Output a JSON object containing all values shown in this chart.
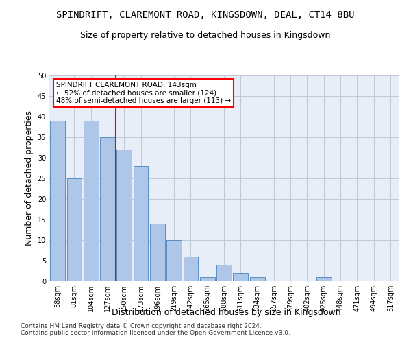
{
  "title": "SPINDRIFT, CLAREMONT ROAD, KINGSDOWN, DEAL, CT14 8BU",
  "subtitle": "Size of property relative to detached houses in Kingsdown",
  "xlabel": "Distribution of detached houses by size in Kingsdown",
  "ylabel": "Number of detached properties",
  "categories": [
    "58sqm",
    "81sqm",
    "104sqm",
    "127sqm",
    "150sqm",
    "173sqm",
    "196sqm",
    "219sqm",
    "242sqm",
    "265sqm",
    "288sqm",
    "311sqm",
    "334sqm",
    "357sqm",
    "379sqm",
    "402sqm",
    "425sqm",
    "448sqm",
    "471sqm",
    "494sqm",
    "517sqm"
  ],
  "values": [
    39,
    25,
    39,
    35,
    32,
    28,
    14,
    10,
    6,
    1,
    4,
    2,
    1,
    0,
    0,
    0,
    1,
    0,
    0,
    0,
    0
  ],
  "bar_color": "#aec6e8",
  "bar_edge_color": "#5a8fc2",
  "ylim": [
    0,
    50
  ],
  "yticks": [
    0,
    5,
    10,
    15,
    20,
    25,
    30,
    35,
    40,
    45,
    50
  ],
  "vline_color": "red",
  "annotation_title": "SPINDRIFT CLAREMONT ROAD: 143sqm",
  "annotation_line1": "← 52% of detached houses are smaller (124)",
  "annotation_line2": "48% of semi-detached houses are larger (113) →",
  "annotation_box_color": "red",
  "footer_line1": "Contains HM Land Registry data © Crown copyright and database right 2024.",
  "footer_line2": "Contains public sector information licensed under the Open Government Licence v3.0.",
  "background_color": "#ffffff",
  "plot_bg_color": "#e8eef8",
  "grid_color": "#c0c8d8"
}
